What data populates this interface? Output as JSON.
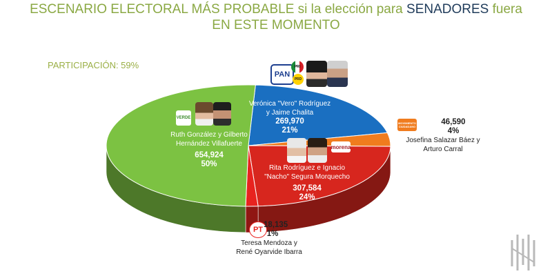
{
  "title": {
    "part1": "ESCENARIO ELECTORAL MÁS PROBABLE si la elección para ",
    "highlight": "SENADORES",
    "part2": " fuera",
    "line2": "EN ESTE MOMENTO"
  },
  "participation": "PARTICIPACIÓN: 59%",
  "logos": {
    "pan": "PAN",
    "pri": "PRI",
    "prd": "PRD",
    "verde": "VERDE",
    "mc": "MOVIMIENTO CIUDADANO",
    "morena": "morena",
    "pt": "PT"
  },
  "chart_data": {
    "type": "pie",
    "title": "ESCENARIO ELECTORAL MÁS PROBABLE si la elección para SENADORES fuera EN ESTE MOMENTO",
    "participation": "59%",
    "slices": [
      {
        "label_line1": "Ruth González y Gilberto",
        "label_line2": "Hernández Villafuerte",
        "votes": "654,924",
        "value": 654924,
        "percent": "50%",
        "color": "#7cc242"
      },
      {
        "label_line1": "Verónica \"Vero\" Rodríguez",
        "label_line2": "y Jaime Chalita",
        "votes": "269,970",
        "value": 269970,
        "percent": "21%",
        "color": "#1a6fc1"
      },
      {
        "label_line1": "Josefina Salazar Báez y",
        "label_line2": "Arturo Carral",
        "votes": "46,590",
        "value": 46590,
        "percent": "4%",
        "color": "#f07c1e"
      },
      {
        "label_line1": "Rita Rodríguez e Ignacio",
        "label_line2": "\"Nacho\" Segura Morquecho",
        "votes": "307,584",
        "value": 307584,
        "percent": "24%",
        "color": "#d7261e"
      },
      {
        "label_line1": "Teresa Mendoza y",
        "label_line2": "René Oyarvide Ibarra",
        "votes": "18,135",
        "value": 18135,
        "percent": "1%",
        "color": "#e8231f"
      }
    ]
  }
}
